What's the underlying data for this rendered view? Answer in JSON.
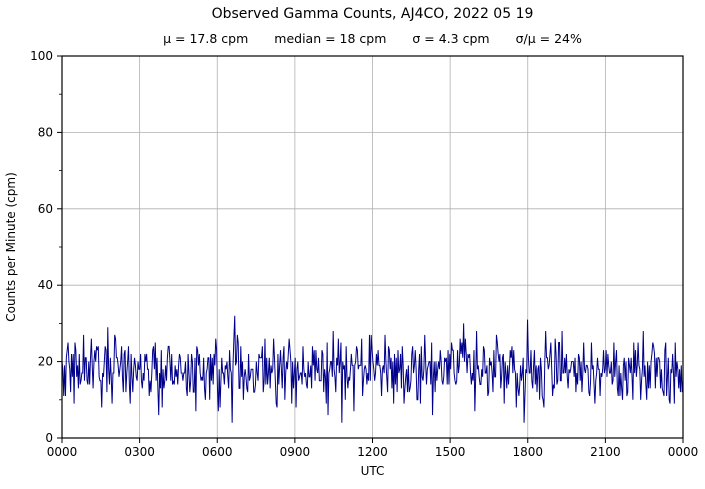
{
  "figure": {
    "title": "Observed Gamma Counts, AJ4CO, 2022 05 19",
    "stats": {
      "mu": "μ = 17.8 cpm",
      "median": "median = 18 cpm",
      "sigma": "σ = 4.3 cpm",
      "sigma_over_mu": "σ/μ = 24%"
    }
  },
  "chart_data": {
    "type": "line",
    "title": "Observed Gamma Counts, AJ4CO, 2022 05 19",
    "subtitle": "μ = 17.8 cpm   median = 18 cpm   σ = 4.3 cpm   σ/μ = 24%",
    "xlabel": "UTC",
    "ylabel": "Counts per Minute (cpm)",
    "x_tick_labels": [
      "0000",
      "0300",
      "0600",
      "0900",
      "1200",
      "1500",
      "1800",
      "2100",
      "0000"
    ],
    "x_span_hours": 24,
    "y_ticks": [
      0,
      20,
      40,
      60,
      80,
      100
    ],
    "y_minor_step": 10,
    "ylim": [
      0,
      100
    ],
    "grid": true,
    "legend": false,
    "background_color": "#ffffff",
    "line_color": "#00008B",
    "grid_color": "#b0b0b0",
    "axis_color": "#000000",
    "series": [
      {
        "name": "observed-gamma-counts",
        "mean_cpm": 17.8,
        "median_cpm": 18,
        "sigma_cpm": 4.3,
        "sigma_over_mu_pct": 24,
        "min_cpm": 4,
        "max_cpm": 32,
        "n_points": 720,
        "seed": 20220519
      }
    ]
  }
}
